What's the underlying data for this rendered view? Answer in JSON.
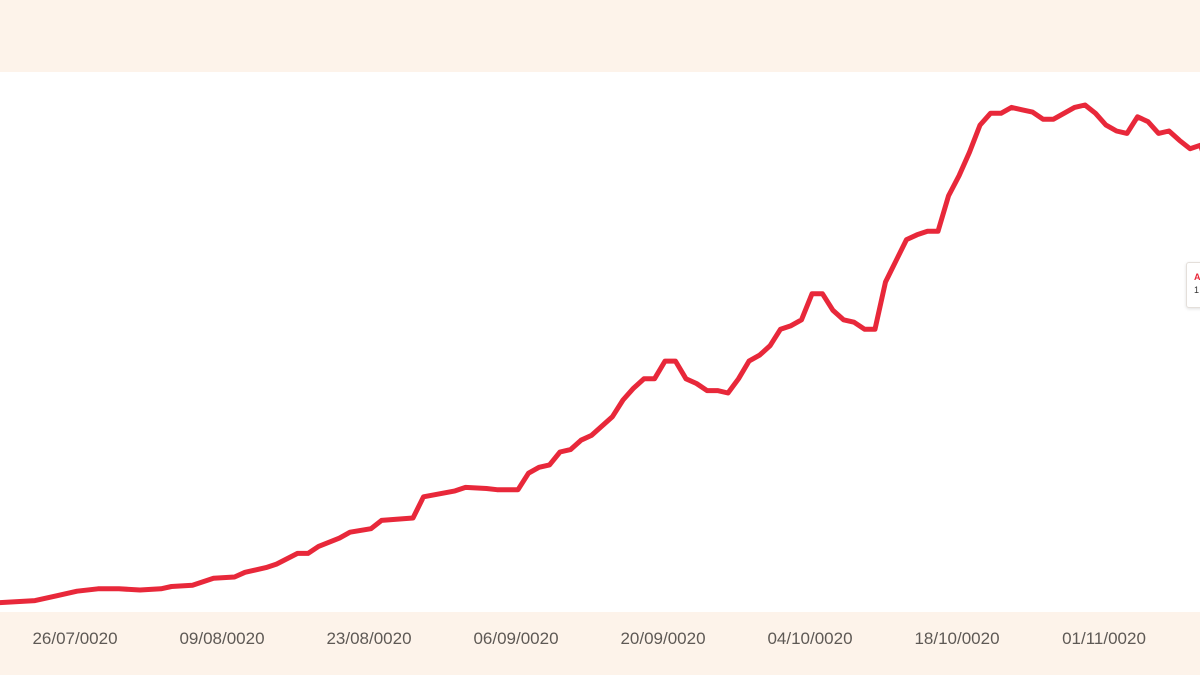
{
  "chart_data": {
    "type": "line",
    "title": "",
    "xlabel": "",
    "ylabel": "",
    "x_tick_labels": [
      "26/07/0020",
      "09/08/0020",
      "23/08/0020",
      "06/09/0020",
      "20/09/0020",
      "04/10/0020",
      "18/10/0020",
      "01/11/0020"
    ],
    "grid": false,
    "legend": "none",
    "series": [
      {
        "color": "#e8283a",
        "points": [
          [
            0,
            0
          ],
          [
            4,
            2
          ],
          [
            6,
            6
          ],
          [
            8,
            10
          ],
          [
            10,
            12
          ],
          [
            12,
            12
          ],
          [
            14,
            11
          ],
          [
            16,
            12
          ],
          [
            17,
            14
          ],
          [
            19,
            15
          ],
          [
            21,
            21
          ],
          [
            23,
            22
          ],
          [
            24,
            26
          ],
          [
            26,
            30
          ],
          [
            27,
            33
          ],
          [
            29,
            42
          ],
          [
            30,
            42
          ],
          [
            31,
            48
          ],
          [
            33,
            55
          ],
          [
            34,
            60
          ],
          [
            36,
            63
          ],
          [
            37,
            70
          ],
          [
            40,
            72
          ],
          [
            41,
            90
          ],
          [
            44,
            95
          ],
          [
            45,
            98
          ],
          [
            47,
            97
          ],
          [
            48,
            96
          ],
          [
            50,
            96
          ],
          [
            51,
            110
          ],
          [
            52,
            115
          ],
          [
            53,
            117
          ],
          [
            54,
            128
          ],
          [
            55,
            130
          ],
          [
            56,
            138
          ],
          [
            57,
            142
          ],
          [
            58,
            150
          ],
          [
            59,
            158
          ],
          [
            60,
            172
          ],
          [
            61,
            182
          ],
          [
            62,
            190
          ],
          [
            63,
            190
          ],
          [
            64,
            205
          ],
          [
            65,
            205
          ],
          [
            66,
            190
          ],
          [
            67,
            186
          ],
          [
            68,
            180
          ],
          [
            69,
            180
          ],
          [
            70,
            178
          ],
          [
            71,
            190
          ],
          [
            72,
            205
          ],
          [
            73,
            210
          ],
          [
            74,
            218
          ],
          [
            75,
            232
          ],
          [
            76,
            235
          ],
          [
            77,
            240
          ],
          [
            78,
            262
          ],
          [
            79,
            262
          ],
          [
            80,
            248
          ],
          [
            81,
            240
          ],
          [
            82,
            238
          ],
          [
            83,
            232
          ],
          [
            84,
            232
          ],
          [
            85,
            272
          ],
          [
            86,
            290
          ],
          [
            87,
            308
          ],
          [
            88,
            312
          ],
          [
            89,
            315
          ],
          [
            90,
            315
          ],
          [
            91,
            345
          ],
          [
            92,
            362
          ],
          [
            93,
            382
          ],
          [
            94,
            405
          ],
          [
            95,
            415
          ],
          [
            96,
            415
          ],
          [
            97,
            420
          ],
          [
            98,
            418
          ],
          [
            99,
            416
          ],
          [
            100,
            410
          ],
          [
            101,
            410
          ],
          [
            102,
            415
          ],
          [
            103,
            420
          ],
          [
            104,
            422
          ],
          [
            105,
            415
          ],
          [
            106,
            405
          ],
          [
            107,
            400
          ],
          [
            108,
            398
          ],
          [
            109,
            412
          ],
          [
            110,
            408
          ],
          [
            111,
            398
          ],
          [
            112,
            400
          ],
          [
            113,
            392
          ],
          [
            114,
            385
          ],
          [
            115,
            388
          ],
          [
            116,
            362
          ],
          [
            117,
            350
          ],
          [
            118,
            338
          ],
          [
            119,
            335
          ],
          [
            119.5,
            338
          ]
        ]
      }
    ],
    "tooltip": {
      "label": "A",
      "value": "1"
    }
  }
}
